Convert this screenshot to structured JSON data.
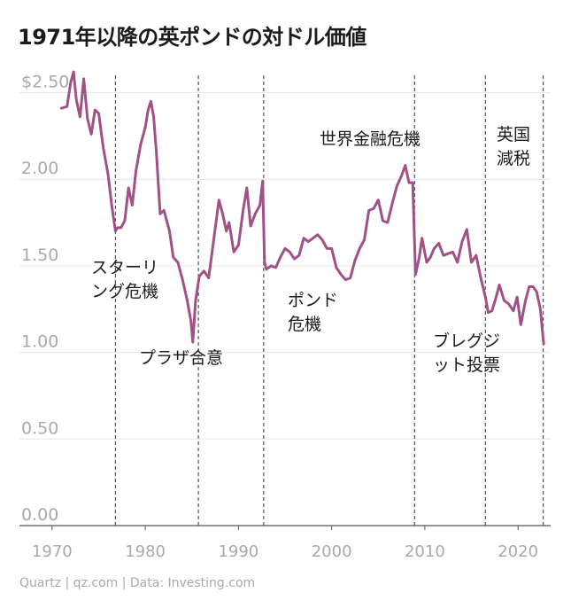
{
  "title": "1971年以降の英ポンドの対ドル価値",
  "footer": "Quartz | qz.com | Data: Investing.com",
  "colors": {
    "line": "#a05187",
    "grid": "#e6e6e6",
    "axis": "#555555",
    "event": "#555555",
    "tick": "#a9a9a9"
  },
  "chart_data": {
    "type": "line",
    "title": "1971年以降の英ポンドの対ドル価値",
    "xlabel": "",
    "ylabel": "",
    "xlim": [
      1966.5,
      2023.5
    ],
    "ylim": [
      0,
      2.6
    ],
    "y_ticks": [
      {
        "value": 0,
        "label": "0.00"
      },
      {
        "value": 0.5,
        "label": "0.50"
      },
      {
        "value": 1.0,
        "label": "1.00"
      },
      {
        "value": 1.5,
        "label": "1.50"
      },
      {
        "value": 2.0,
        "label": "2.00"
      },
      {
        "value": 2.5,
        "label": "$2.50"
      }
    ],
    "x_ticks": [
      {
        "value": 1970,
        "label": "1970"
      },
      {
        "value": 1980,
        "label": "1980"
      },
      {
        "value": 1990,
        "label": "1990"
      },
      {
        "value": 2000,
        "label": "2000"
      },
      {
        "value": 2010,
        "label": "2010"
      },
      {
        "value": 2020,
        "label": "2020"
      }
    ],
    "grid": true,
    "series": [
      {
        "values": [
          [
            1971.0,
            2.41
          ],
          [
            1971.6,
            2.42
          ],
          [
            1972.0,
            2.56
          ],
          [
            1972.3,
            2.62
          ],
          [
            1972.6,
            2.46
          ],
          [
            1973.0,
            2.36
          ],
          [
            1973.4,
            2.58
          ],
          [
            1973.8,
            2.35
          ],
          [
            1974.2,
            2.26
          ],
          [
            1974.6,
            2.4
          ],
          [
            1975.0,
            2.38
          ],
          [
            1975.5,
            2.18
          ],
          [
            1976.0,
            2.03
          ],
          [
            1976.4,
            1.85
          ],
          [
            1976.8,
            1.7
          ],
          [
            1977.0,
            1.72
          ],
          [
            1977.4,
            1.72
          ],
          [
            1977.8,
            1.76
          ],
          [
            1978.2,
            1.95
          ],
          [
            1978.6,
            1.85
          ],
          [
            1979.0,
            2.05
          ],
          [
            1979.5,
            2.2
          ],
          [
            1980.0,
            2.3
          ],
          [
            1980.3,
            2.4
          ],
          [
            1980.6,
            2.45
          ],
          [
            1980.9,
            2.36
          ],
          [
            1981.2,
            2.15
          ],
          [
            1981.6,
            1.8
          ],
          [
            1982.0,
            1.82
          ],
          [
            1982.6,
            1.7
          ],
          [
            1983.0,
            1.55
          ],
          [
            1983.5,
            1.52
          ],
          [
            1984.0,
            1.42
          ],
          [
            1984.5,
            1.3
          ],
          [
            1984.9,
            1.18
          ],
          [
            1985.1,
            1.06
          ],
          [
            1985.4,
            1.3
          ],
          [
            1985.8,
            1.44
          ],
          [
            1986.3,
            1.47
          ],
          [
            1986.8,
            1.43
          ],
          [
            1987.3,
            1.63
          ],
          [
            1987.9,
            1.88
          ],
          [
            1988.3,
            1.8
          ],
          [
            1988.7,
            1.7
          ],
          [
            1989.0,
            1.75
          ],
          [
            1989.5,
            1.58
          ],
          [
            1990.0,
            1.62
          ],
          [
            1990.5,
            1.82
          ],
          [
            1990.9,
            1.95
          ],
          [
            1991.3,
            1.73
          ],
          [
            1991.8,
            1.8
          ],
          [
            1992.3,
            1.85
          ],
          [
            1992.6,
            1.99
          ],
          [
            1992.8,
            1.52
          ],
          [
            1993.0,
            1.48
          ],
          [
            1993.5,
            1.5
          ],
          [
            1994.0,
            1.49
          ],
          [
            1994.5,
            1.55
          ],
          [
            1995.0,
            1.6
          ],
          [
            1995.5,
            1.58
          ],
          [
            1996.0,
            1.54
          ],
          [
            1996.5,
            1.56
          ],
          [
            1997.0,
            1.66
          ],
          [
            1997.5,
            1.64
          ],
          [
            1998.0,
            1.66
          ],
          [
            1998.5,
            1.68
          ],
          [
            1999.0,
            1.65
          ],
          [
            1999.5,
            1.6
          ],
          [
            2000.0,
            1.6
          ],
          [
            2000.5,
            1.49
          ],
          [
            2001.0,
            1.45
          ],
          [
            2001.5,
            1.42
          ],
          [
            2002.0,
            1.43
          ],
          [
            2002.5,
            1.53
          ],
          [
            2003.0,
            1.6
          ],
          [
            2003.5,
            1.65
          ],
          [
            2004.0,
            1.82
          ],
          [
            2004.5,
            1.83
          ],
          [
            2005.0,
            1.88
          ],
          [
            2005.5,
            1.76
          ],
          [
            2006.0,
            1.75
          ],
          [
            2006.5,
            1.86
          ],
          [
            2007.0,
            1.96
          ],
          [
            2007.5,
            2.02
          ],
          [
            2007.9,
            2.08
          ],
          [
            2008.3,
            1.98
          ],
          [
            2008.7,
            1.98
          ],
          [
            2009.0,
            1.45
          ],
          [
            2009.4,
            1.55
          ],
          [
            2009.7,
            1.66
          ],
          [
            2010.2,
            1.52
          ],
          [
            2010.6,
            1.55
          ],
          [
            2011.0,
            1.6
          ],
          [
            2011.5,
            1.63
          ],
          [
            2012.0,
            1.56
          ],
          [
            2012.5,
            1.57
          ],
          [
            2013.0,
            1.58
          ],
          [
            2013.5,
            1.52
          ],
          [
            2014.0,
            1.64
          ],
          [
            2014.5,
            1.71
          ],
          [
            2015.0,
            1.52
          ],
          [
            2015.5,
            1.56
          ],
          [
            2016.0,
            1.43
          ],
          [
            2016.5,
            1.32
          ],
          [
            2016.8,
            1.23
          ],
          [
            2017.2,
            1.24
          ],
          [
            2017.6,
            1.31
          ],
          [
            2018.0,
            1.39
          ],
          [
            2018.5,
            1.3
          ],
          [
            2019.0,
            1.28
          ],
          [
            2019.5,
            1.24
          ],
          [
            2019.9,
            1.32
          ],
          [
            2020.3,
            1.16
          ],
          [
            2020.8,
            1.3
          ],
          [
            2021.2,
            1.38
          ],
          [
            2021.6,
            1.38
          ],
          [
            2022.0,
            1.35
          ],
          [
            2022.4,
            1.25
          ],
          [
            2022.75,
            1.05
          ]
        ]
      }
    ],
    "events": [
      {
        "x": 1976.8,
        "label": [
          "スターリ",
          "ング危機"
        ]
      },
      {
        "x": 1985.7,
        "label": [
          "プラザ合意"
        ]
      },
      {
        "x": 1992.7,
        "label": [
          "ポンド",
          "危機"
        ]
      },
      {
        "x": 2008.9,
        "label": [
          "世界金融危機"
        ]
      },
      {
        "x": 2016.5,
        "label": [
          "ブレグジ",
          "ット投票"
        ]
      },
      {
        "x": 2022.7,
        "label": [
          "英国",
          "減税"
        ]
      }
    ]
  }
}
